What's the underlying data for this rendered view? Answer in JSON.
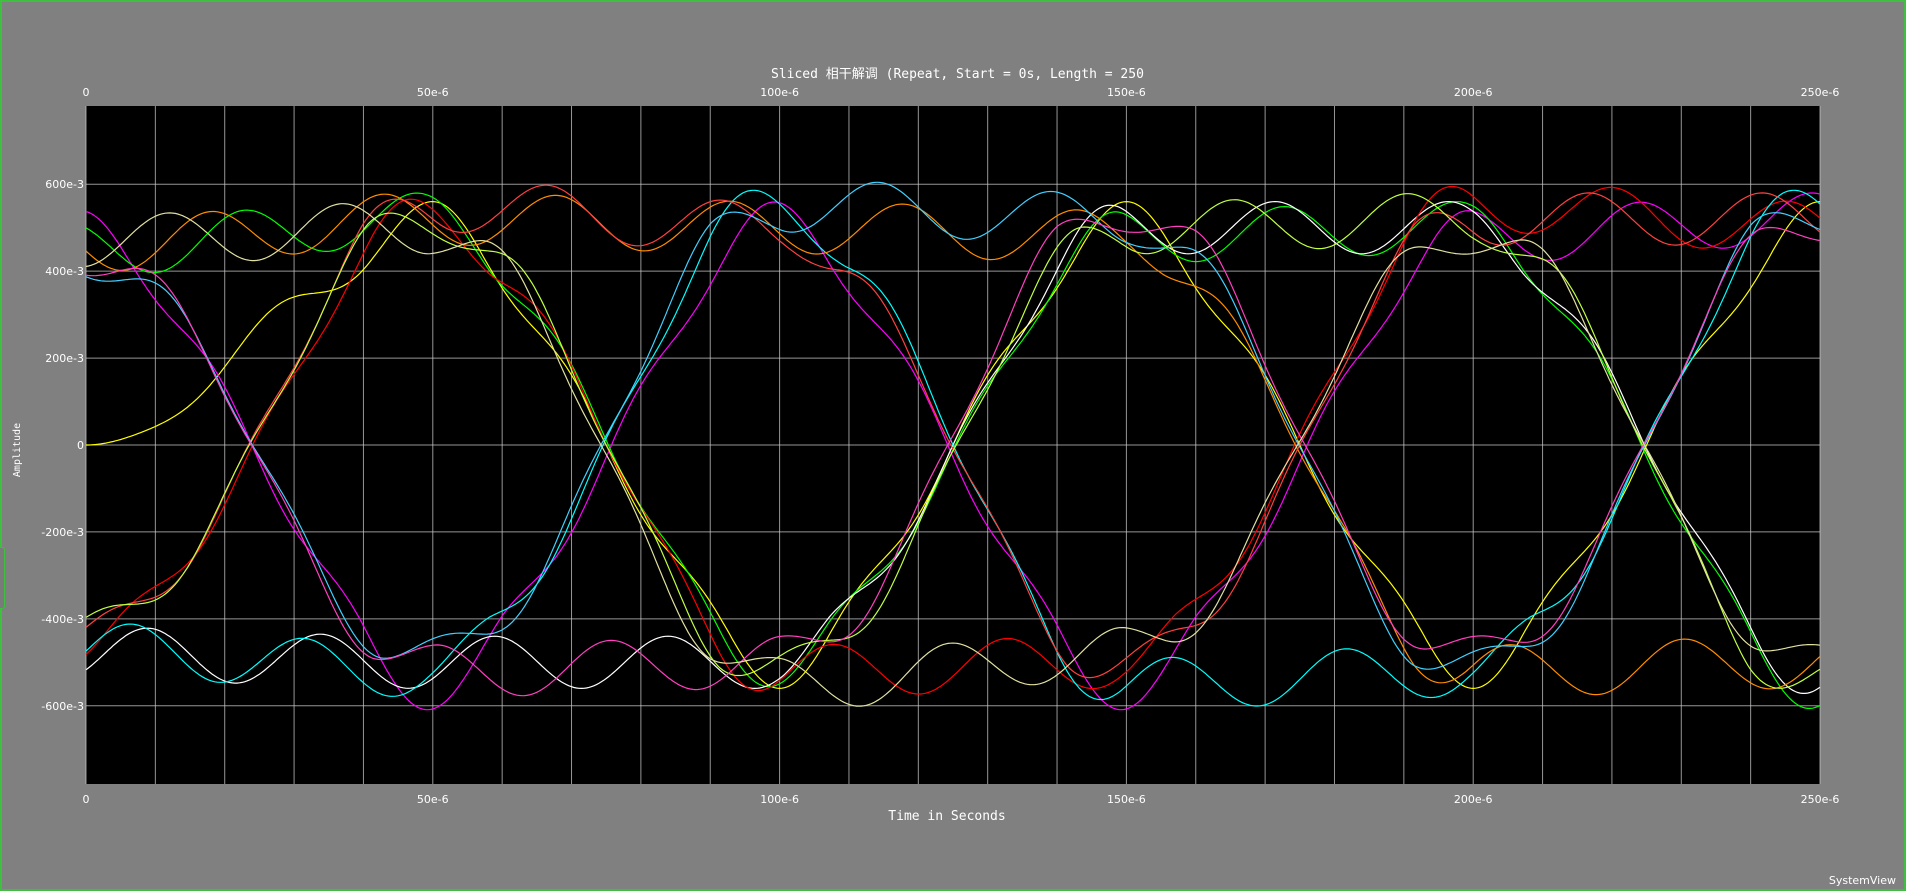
{
  "window": {
    "brand": "SystemView",
    "frame_color": "#3fbf3f",
    "background": "#808080"
  },
  "chart_data": {
    "type": "line",
    "title": "Sliced 相干解调 (Repeat, Start = 0s, Length = 250",
    "xlabel": "Time in Seconds",
    "ylabel": "Amplitude",
    "xlim": [
      0,
      0.00025
    ],
    "ylim": [
      -0.78,
      0.78
    ],
    "grid": true,
    "plot_background": "#000000",
    "x_tick_labels": [
      "0",
      "50e-6",
      "100e-6",
      "150e-6",
      "200e-6",
      "250e-6"
    ],
    "y_tick_labels": [
      "600e-3",
      "400e-3",
      "200e-3",
      "0",
      "-200e-3",
      "-400e-3",
      "-600e-3"
    ],
    "y_tick_values": [
      0.6,
      0.4,
      0.2,
      0,
      -0.2,
      -0.4,
      -0.6
    ],
    "x_tick_values": [
      0,
      5e-05,
      0.0001,
      0.00015,
      0.0002,
      0.00025
    ],
    "x_grid_step": 1e-05,
    "trace_colors": [
      "#ff0000",
      "#00ff00",
      "#ffff00",
      "#00ffff",
      "#ff00ff",
      "#ffffff",
      "#ff8c00",
      "#ff4040",
      "#c0ff40",
      "#40d0ff",
      "#ff40c0",
      "#e0e0a0"
    ],
    "bit_period": 5e-05,
    "ripple_amplitude": 0.06,
    "series": [
      {
        "color": "#ffff00",
        "values": [
          0,
          0.5,
          -0.5,
          0.5,
          -0.5,
          0.5
        ]
      },
      {
        "color": "#ff00ff",
        "values": [
          0.48,
          -0.55,
          0.5,
          -0.55,
          0.48,
          0.52
        ]
      },
      {
        "color": "#00ff00",
        "values": [
          0.45,
          0.52,
          -0.5,
          0.48,
          0.5,
          -0.55
        ]
      },
      {
        "color": "#ffffff",
        "values": [
          -0.48,
          -0.5,
          -0.5,
          0.5,
          0.5,
          -0.52
        ]
      },
      {
        "color": "#ff0000",
        "values": [
          -0.46,
          0.52,
          -0.52,
          -0.5,
          0.55,
          0.5
        ]
      },
      {
        "color": "#00ffff",
        "values": [
          -0.47,
          -0.52,
          0.55,
          -0.55,
          -0.52,
          0.55
        ]
      },
      {
        "color": "#ff8c00",
        "values": [
          0.46,
          0.52,
          0.5,
          0.48,
          -0.52,
          -0.5
        ]
      },
      {
        "color": "#ff4040",
        "values": [
          -0.45,
          0.55,
          0.5,
          -0.52,
          0.52,
          0.52
        ]
      },
      {
        "color": "#c0ff40",
        "values": [
          -0.44,
          0.53,
          -0.53,
          0.5,
          0.52,
          -0.56
        ]
      },
      {
        "color": "#40d0ff",
        "values": [
          0.44,
          -0.5,
          0.55,
          0.52,
          -0.53,
          0.55
        ]
      },
      {
        "color": "#ff40c0",
        "values": [
          0.45,
          -0.52,
          -0.5,
          0.55,
          -0.5,
          0.53
        ]
      },
      {
        "color": "#e0e0a0",
        "values": [
          0.47,
          0.5,
          -0.55,
          -0.48,
          0.5,
          -0.52
        ]
      }
    ]
  }
}
